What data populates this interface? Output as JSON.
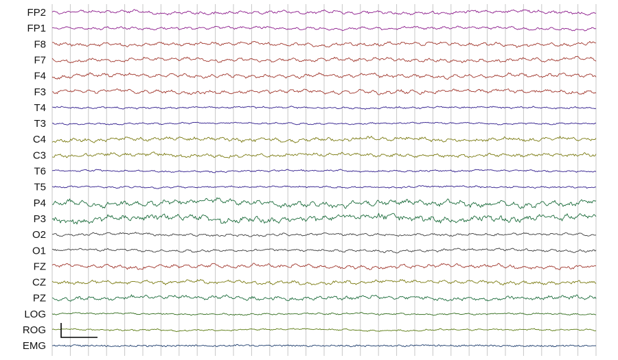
{
  "chart_data": {
    "type": "line",
    "title": "",
    "xlabel": "",
    "ylabel": "",
    "grid": true,
    "vertical_divisions": 30,
    "channels": [
      {
        "name": "FP2",
        "color": "#8b1a8b",
        "amplitude": 2.2,
        "noise": 1.2,
        "slow": 1.0
      },
      {
        "name": "FP1",
        "color": "#8b1a8b",
        "amplitude": 2.0,
        "noise": 1.0,
        "slow": 1.0
      },
      {
        "name": "F8",
        "color": "#a0352b",
        "amplitude": 2.6,
        "noise": 1.3,
        "slow": 1.2
      },
      {
        "name": "F7",
        "color": "#a0352b",
        "amplitude": 2.6,
        "noise": 1.3,
        "slow": 1.2
      },
      {
        "name": "F4",
        "color": "#a0352b",
        "amplitude": 2.8,
        "noise": 1.4,
        "slow": 1.3
      },
      {
        "name": "F3",
        "color": "#a0352b",
        "amplitude": 2.8,
        "noise": 1.4,
        "slow": 1.3
      },
      {
        "name": "T4",
        "color": "#2e1a8b",
        "amplitude": 1.2,
        "noise": 0.8,
        "slow": 0.6
      },
      {
        "name": "T3",
        "color": "#2e1a8b",
        "amplitude": 1.1,
        "noise": 0.7,
        "slow": 0.6
      },
      {
        "name": "C4",
        "color": "#7a7a10",
        "amplitude": 2.4,
        "noise": 1.6,
        "slow": 1.4
      },
      {
        "name": "C3",
        "color": "#7a7a10",
        "amplitude": 2.2,
        "noise": 1.5,
        "slow": 1.3
      },
      {
        "name": "T6",
        "color": "#2e1a8b",
        "amplitude": 1.2,
        "noise": 0.8,
        "slow": 0.7
      },
      {
        "name": "T5",
        "color": "#2e1a8b",
        "amplitude": 1.1,
        "noise": 0.8,
        "slow": 0.6
      },
      {
        "name": "P4",
        "color": "#1a6b3a",
        "amplitude": 3.8,
        "noise": 2.2,
        "slow": 2.6
      },
      {
        "name": "P3",
        "color": "#1a6b3a",
        "amplitude": 3.4,
        "noise": 2.6,
        "slow": 2.4
      },
      {
        "name": "O2",
        "color": "#3a3a3a",
        "amplitude": 1.8,
        "noise": 1.0,
        "slow": 1.0
      },
      {
        "name": "O1",
        "color": "#3a3a3a",
        "amplitude": 1.8,
        "noise": 1.0,
        "slow": 1.0
      },
      {
        "name": "FZ",
        "color": "#a0352b",
        "amplitude": 2.8,
        "noise": 1.4,
        "slow": 1.3
      },
      {
        "name": "CZ",
        "color": "#7a7a10",
        "amplitude": 2.4,
        "noise": 1.5,
        "slow": 1.3
      },
      {
        "name": "PZ",
        "color": "#1a6b3a",
        "amplitude": 2.6,
        "noise": 1.6,
        "slow": 1.4
      },
      {
        "name": "LOG",
        "color": "#2f6b1a",
        "amplitude": 1.0,
        "noise": 0.7,
        "slow": 0.8
      },
      {
        "name": "ROG",
        "color": "#5a7a10",
        "amplitude": 1.0,
        "noise": 0.7,
        "slow": 0.8
      },
      {
        "name": "EMG",
        "color": "#1a3a6b",
        "amplitude": 0.6,
        "noise": 1.1,
        "slow": 0.2
      }
    ]
  }
}
